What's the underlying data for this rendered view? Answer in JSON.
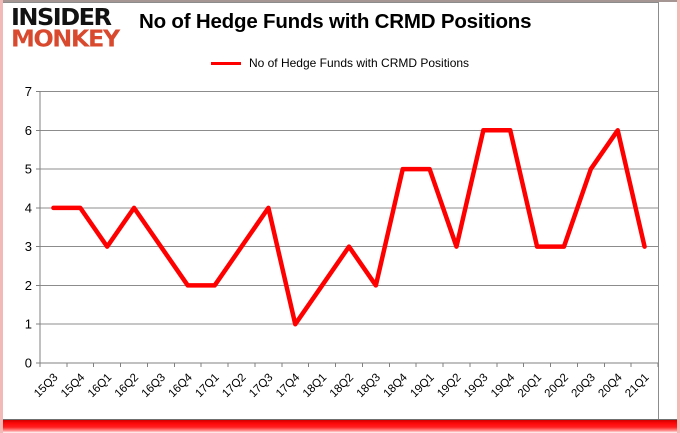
{
  "logo": {
    "line1": "INSIDER",
    "line2": "MONKEY",
    "line2_color": "#d8492e"
  },
  "header": {
    "title": "No of Hedge Funds with CRMD Positions"
  },
  "legend": {
    "label": "No of Hedge Funds with CRMD Positions",
    "line_color": "#ff0000"
  },
  "chart_data": {
    "type": "line",
    "title": "No of Hedge Funds with CRMD Positions",
    "categories": [
      "15Q3",
      "15Q4",
      "16Q1",
      "16Q2",
      "16Q3",
      "16Q4",
      "17Q1",
      "17Q2",
      "17Q3",
      "17Q4",
      "18Q1",
      "18Q2",
      "18Q3",
      "18Q4",
      "19Q1",
      "19Q2",
      "19Q3",
      "19Q4",
      "20Q1",
      "20Q2",
      "20Q3",
      "20Q4",
      "21Q1"
    ],
    "series": [
      {
        "name": "No of Hedge Funds with CRMD Positions",
        "color": "#ff0000",
        "values": [
          4,
          4,
          3,
          4,
          3,
          2,
          2,
          3,
          4,
          1,
          2,
          3,
          2,
          5,
          5,
          3,
          6,
          6,
          3,
          3,
          5,
          6,
          3
        ]
      }
    ],
    "xlabel": "",
    "ylabel": "",
    "ylim": [
      0,
      7
    ],
    "yticks": [
      0,
      1,
      2,
      3,
      4,
      5,
      6,
      7
    ],
    "grid": true,
    "legend_position": "top",
    "gridline_color": "#8c8c8c",
    "axis_color": "#808080",
    "tick_label_color": "#000000"
  }
}
